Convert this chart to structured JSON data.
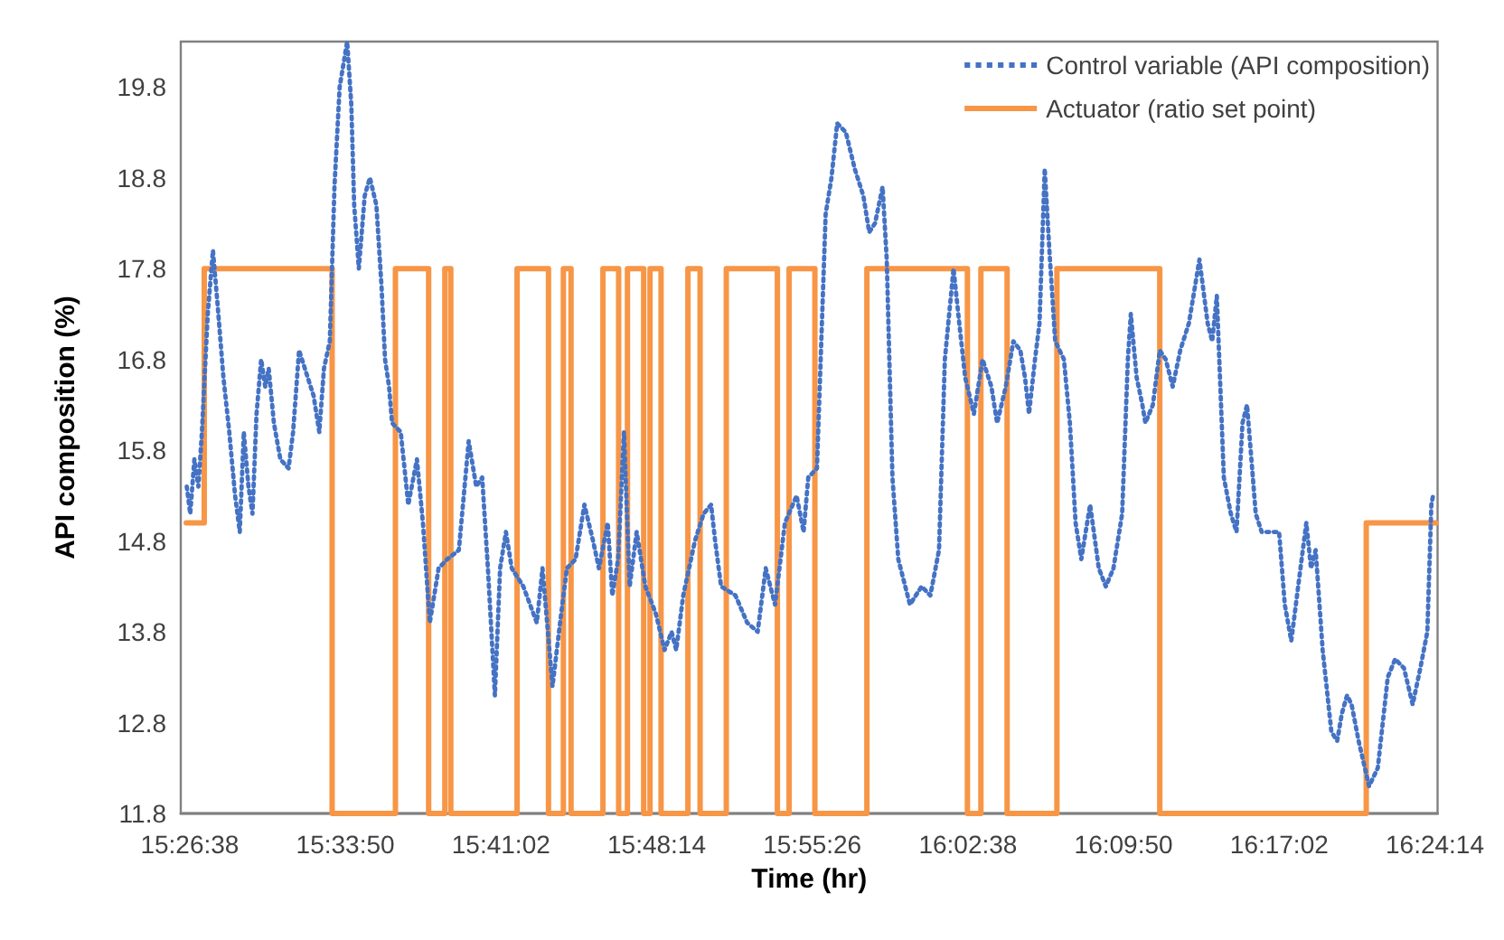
{
  "chart_data": {
    "type": "line",
    "xlabel": "Time (hr)",
    "ylabel": "API composition (%)",
    "xlim": [
      15.437,
      16.406
    ],
    "ylim": [
      11.8,
      20.3
    ],
    "xticks": [
      {
        "value": 15.4439,
        "label": "15:26:38"
      },
      {
        "value": 15.5639,
        "label": "15:33:50"
      },
      {
        "value": 15.6839,
        "label": "15:41:02"
      },
      {
        "value": 15.8039,
        "label": "15:48:14"
      },
      {
        "value": 15.9239,
        "label": "15:55:26"
      },
      {
        "value": 16.0439,
        "label": "16:02:38"
      },
      {
        "value": 16.1639,
        "label": "16:09:50"
      },
      {
        "value": 16.2839,
        "label": "16:17:02"
      },
      {
        "value": 16.4039,
        "label": "16:24:14"
      }
    ],
    "yticks": [
      11.8,
      12.8,
      13.8,
      14.8,
      15.8,
      16.8,
      17.8,
      18.8,
      19.8
    ],
    "grid": false,
    "legend": "top right",
    "marker": "none",
    "series": [
      {
        "name": "Control variable (API composition)",
        "type": "line",
        "line_style": "dotted",
        "color": "#4472c4",
        "x": [
          15.4416,
          15.4443,
          15.4475,
          15.4506,
          15.4533,
          15.4578,
          15.4618,
          15.4654,
          15.4699,
          15.4744,
          15.4789,
          15.4825,
          15.4856,
          15.4892,
          15.4923,
          15.4954,
          15.499,
          15.5021,
          15.5048,
          15.5088,
          15.5138,
          15.5201,
          15.5236,
          15.5282,
          15.5349,
          15.5394,
          15.5438,
          15.5474,
          15.5519,
          15.5555,
          15.5595,
          15.5653,
          15.5685,
          15.5707,
          15.5743,
          15.5788,
          15.5828,
          15.5878,
          15.5918,
          15.5945,
          15.5976,
          15.5999,
          15.6066,
          15.6124,
          15.6191,
          15.6237,
          15.629,
          15.6358,
          15.6425,
          15.6514,
          15.659,
          15.6648,
          15.6694,
          15.6738,
          15.6792,
          15.6832,
          15.6877,
          15.6922,
          15.7011,
          15.7115,
          15.7159,
          15.7236,
          15.7303,
          15.7347,
          15.7414,
          15.7482,
          15.7549,
          15.7594,
          15.7662,
          15.7697,
          15.7742,
          15.7787,
          15.7831,
          15.7885,
          15.7952,
          15.8033,
          15.81,
          15.8154,
          15.819,
          15.8244,
          15.8334,
          15.8401,
          15.8459,
          15.849,
          15.8536,
          15.8647,
          15.8737,
          15.8818,
          15.888,
          15.8952,
          15.9028,
          15.9118,
          15.9172,
          15.9208,
          15.9275,
          15.9342,
          15.9387,
          15.9431,
          15.9498,
          15.9566,
          15.9633,
          15.9678,
          15.9723,
          15.9781,
          15.9813,
          15.9857,
          15.9902,
          15.9992,
          16.0082,
          16.0149,
          16.0216,
          16.0261,
          16.0328,
          16.0372,
          16.0418,
          16.0485,
          16.0552,
          16.062,
          16.0664,
          16.0731,
          16.0789,
          16.0843,
          16.0879,
          16.091,
          16.0956,
          16.0991,
          16.1031,
          16.1067,
          16.1112,
          16.1179,
          16.1225,
          16.1269,
          16.1313,
          16.1381,
          16.1448,
          16.1502,
          16.1561,
          16.1628,
          16.1672,
          16.1695,
          16.174,
          16.1784,
          16.1807,
          16.1865,
          16.1918,
          16.1964,
          16.2018,
          16.2076,
          16.2143,
          16.2224,
          16.2287,
          16.2322,
          16.2358,
          16.2412,
          16.2466,
          16.251,
          16.2556,
          16.2591,
          16.2658,
          16.2704,
          16.2838,
          16.2882,
          16.2932,
          16.2994,
          16.3048,
          16.3084,
          16.312,
          16.3174,
          16.3241,
          16.3286,
          16.3322,
          16.3362,
          16.3397,
          16.3451,
          16.3532,
          16.3599,
          16.3676,
          16.3733,
          16.3801,
          16.3868,
          16.3927,
          16.3981,
          16.4012,
          16.4025
        ],
        "values": [
          15.4,
          15.1,
          15.7,
          15.4,
          16.0,
          17.3,
          18.0,
          17.4,
          16.6,
          16.0,
          15.3,
          14.9,
          16.0,
          15.4,
          15.1,
          16.2,
          16.8,
          16.5,
          16.7,
          16.1,
          15.7,
          15.6,
          16.0,
          16.9,
          16.6,
          16.4,
          16.0,
          16.7,
          17.0,
          18.7,
          19.8,
          20.3,
          19.6,
          18.5,
          17.8,
          18.6,
          18.8,
          18.5,
          17.6,
          16.8,
          16.5,
          16.1,
          16.0,
          15.2,
          15.7,
          15.0,
          13.9,
          14.5,
          14.6,
          14.7,
          15.9,
          15.4,
          15.5,
          14.5,
          13.1,
          14.5,
          14.9,
          14.5,
          14.3,
          13.9,
          14.5,
          13.2,
          14.0,
          14.5,
          14.6,
          15.2,
          14.8,
          14.5,
          15.0,
          14.2,
          14.6,
          16.0,
          14.3,
          14.9,
          14.3,
          14.0,
          13.6,
          13.8,
          13.6,
          14.2,
          14.8,
          15.1,
          15.2,
          14.8,
          14.3,
          14.2,
          13.9,
          13.8,
          14.5,
          14.1,
          15.0,
          15.3,
          14.9,
          15.5,
          15.6,
          18.4,
          18.8,
          19.4,
          19.3,
          18.9,
          18.6,
          18.2,
          18.3,
          18.7,
          17.9,
          15.5,
          14.6,
          14.1,
          14.3,
          14.2,
          14.7,
          16.8,
          17.8,
          17.2,
          16.6,
          16.2,
          16.8,
          16.5,
          16.1,
          16.5,
          17.0,
          16.9,
          16.6,
          16.2,
          16.8,
          17.2,
          18.9,
          18.0,
          17.0,
          16.8,
          16.1,
          15.0,
          14.6,
          15.2,
          14.5,
          14.3,
          14.5,
          15.1,
          16.8,
          17.3,
          16.6,
          16.3,
          16.1,
          16.3,
          16.9,
          16.8,
          16.5,
          16.9,
          17.2,
          17.9,
          17.2,
          17.0,
          17.5,
          15.5,
          15.1,
          14.9,
          16.1,
          16.3,
          15.1,
          14.9,
          14.9,
          14.1,
          13.7,
          14.4,
          15.0,
          14.5,
          14.7,
          13.6,
          12.7,
          12.6,
          12.9,
          13.1,
          13.0,
          12.6,
          12.1,
          12.3,
          13.3,
          13.5,
          13.4,
          13.0,
          13.4,
          13.8,
          15.2,
          15.3
        ]
      },
      {
        "name": "Actuator (ratio set point)",
        "type": "step",
        "line_style": "solid",
        "color": "#f79646",
        "x": [
          15.4412,
          15.4551,
          15.5537,
          15.6025,
          15.6281,
          15.6406,
          15.6452,
          15.6963,
          15.7205,
          15.732,
          15.7379,
          15.7625,
          15.7746,
          15.7814,
          15.7939,
          15.7988,
          15.8073,
          15.828,
          15.8374,
          15.8576,
          15.897,
          15.906,
          15.9259,
          15.966,
          16.0435,
          16.0539,
          16.0741,
          16.1125,
          16.1918,
          16.351,
          16.4048
        ],
        "values": [
          15.0,
          17.8,
          11.8,
          17.8,
          11.8,
          17.8,
          11.8,
          17.8,
          11.8,
          17.8,
          11.8,
          17.8,
          11.8,
          17.8,
          11.8,
          17.8,
          11.8,
          17.8,
          11.8,
          17.8,
          11.8,
          17.8,
          11.8,
          17.8,
          11.8,
          17.8,
          11.8,
          17.8,
          11.8,
          15.0,
          15.0
        ]
      }
    ]
  }
}
